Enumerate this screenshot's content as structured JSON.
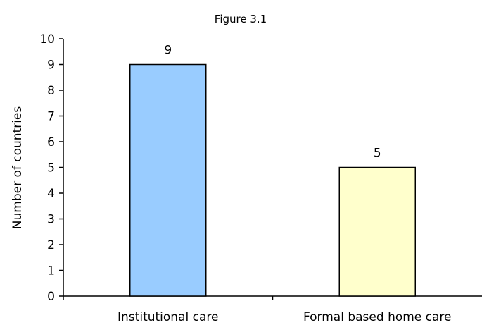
{
  "chart_data": {
    "type": "bar",
    "title": "Figure 3.1",
    "xlabel": "",
    "ylabel": "Number of countries",
    "categories": [
      "Institutional care",
      "Formal based home care"
    ],
    "values": [
      9,
      5
    ],
    "data_labels": [
      "9",
      "5"
    ],
    "bar_colors": [
      "#99ccff",
      "#ffffcc"
    ],
    "ylim": [
      0,
      10
    ],
    "yticks": [
      0,
      1,
      2,
      3,
      4,
      5,
      6,
      7,
      8,
      9,
      10
    ],
    "grid": false,
    "legend": "none"
  }
}
